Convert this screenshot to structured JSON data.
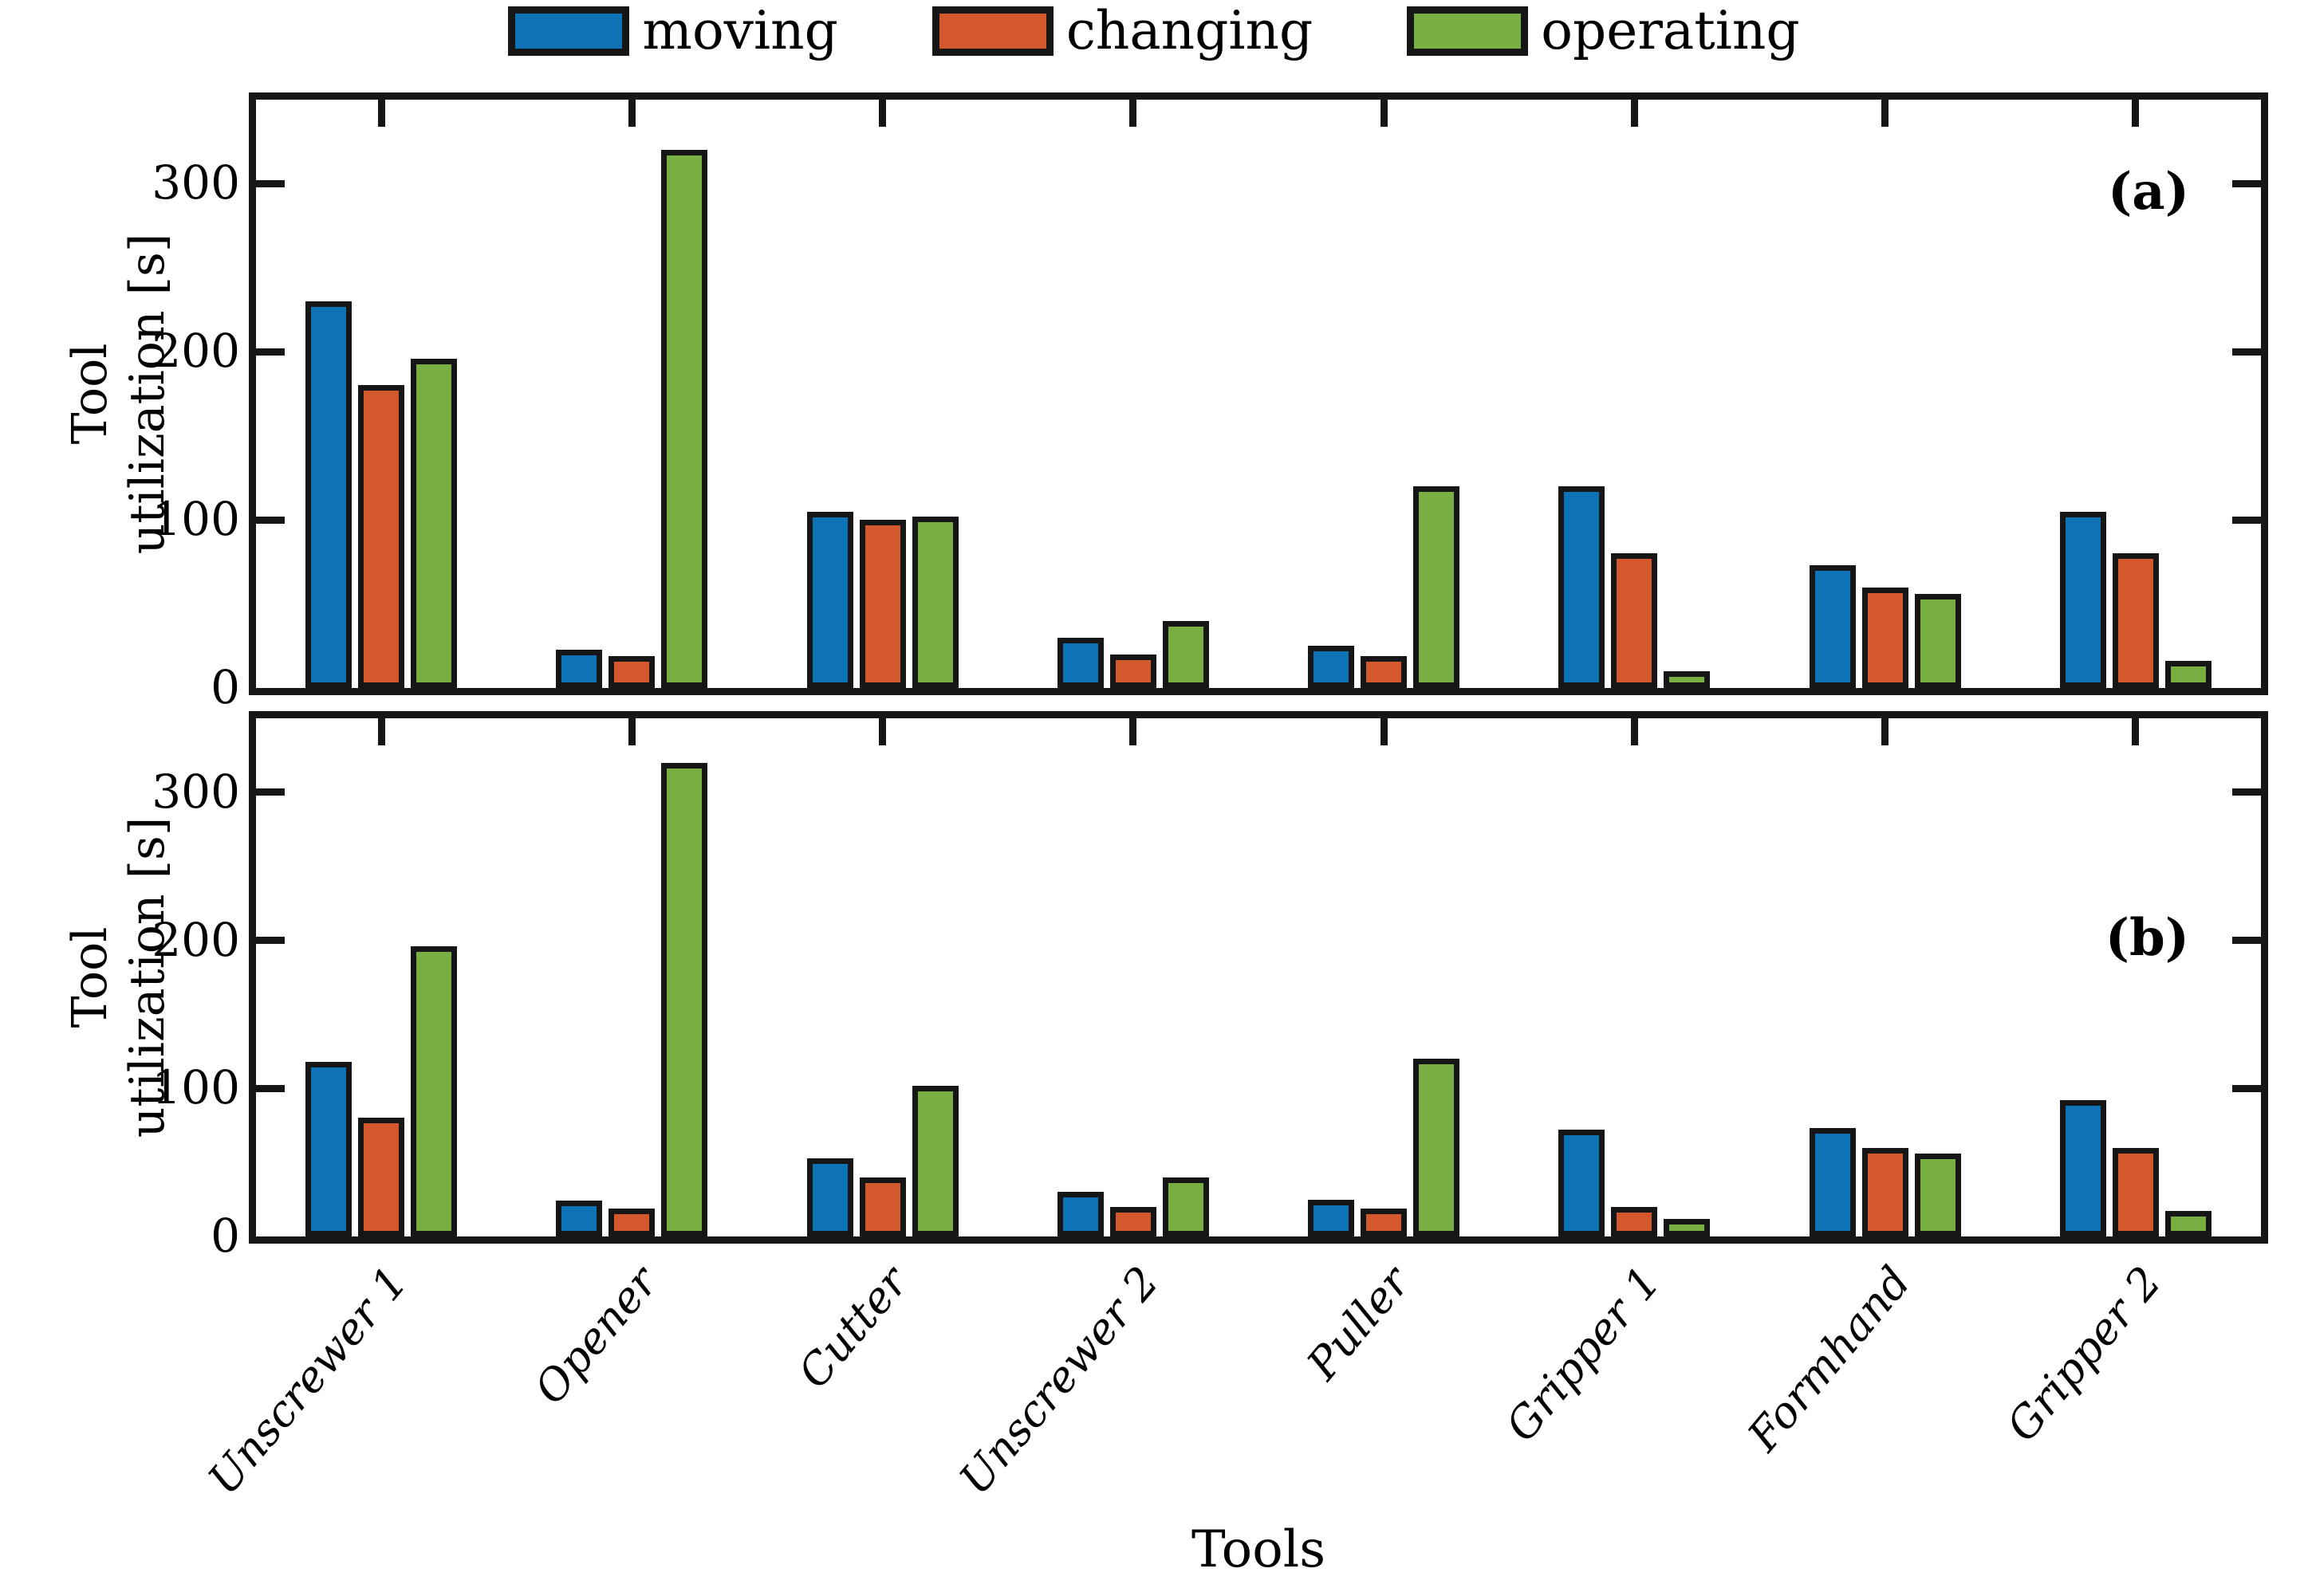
{
  "figure": {
    "xlabel": "Tools",
    "ylabel_line1": "Tool",
    "ylabel_line2": "utilization [s]"
  },
  "legend": {
    "items": [
      {
        "label": "moving",
        "color": "#0e73b6"
      },
      {
        "label": "changing",
        "color": "#d3582b"
      },
      {
        "label": "operating",
        "color": "#79ae43"
      }
    ]
  },
  "chart_data": {
    "type": "bar",
    "title": "",
    "xlabel": "Tools",
    "ylabel": "Tool utilization [s]",
    "categories": [
      "Unscrewer 1",
      "Opener",
      "Cutter",
      "Unscrewer 2",
      "Puller",
      "Gripper 1",
      "Formhand",
      "Gripper 2"
    ],
    "yticks": [
      0,
      100,
      200,
      300
    ],
    "ylim": [
      0,
      350
    ],
    "grid": false,
    "legend_position": "top-center",
    "edge_color": "#161616",
    "panels": [
      {
        "label": "(a)",
        "series": [
          {
            "name": "moving",
            "color": "#0e73b6",
            "values": [
              230,
              23,
              105,
              30,
              25,
              120,
              73,
              105
            ]
          },
          {
            "name": "changing",
            "color": "#d3582b",
            "values": [
              180,
              19,
              100,
              20,
              19,
              80,
              60,
              80
            ]
          },
          {
            "name": "operating",
            "color": "#79ae43",
            "values": [
              196,
              320,
              102,
              40,
              120,
              10,
              56,
              16
            ]
          }
        ]
      },
      {
        "label": "(b)",
        "series": [
          {
            "name": "moving",
            "color": "#0e73b6",
            "values": [
              118,
              24,
              53,
              30,
              25,
              72,
              73,
              92
            ]
          },
          {
            "name": "changing",
            "color": "#d3582b",
            "values": [
              80,
              19,
              40,
              20,
              19,
              20,
              60,
              60
            ]
          },
          {
            "name": "operating",
            "color": "#79ae43",
            "values": [
              196,
              320,
              102,
              40,
              120,
              12,
              56,
              17
            ]
          }
        ]
      }
    ]
  }
}
